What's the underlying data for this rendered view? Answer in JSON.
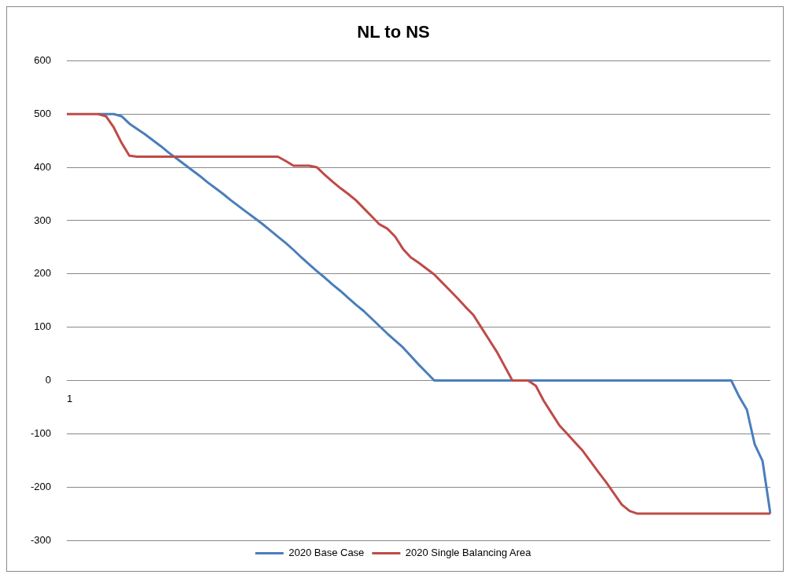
{
  "chart_data": {
    "type": "line",
    "title": "NL to NS",
    "categories": [
      "1",
      null,
      null,
      null,
      null,
      null,
      null,
      null,
      null,
      null,
      null,
      null,
      null,
      null,
      null,
      null,
      null,
      null,
      null,
      null,
      null,
      null,
      null,
      null,
      null,
      null,
      null,
      null,
      null,
      null,
      null,
      null,
      null,
      null,
      null,
      null,
      null,
      null,
      null,
      null,
      null,
      null,
      null,
      null,
      null,
      null,
      null,
      null,
      null,
      null,
      null,
      null,
      null,
      null,
      null,
      null,
      null,
      null,
      null,
      null,
      null,
      null,
      null,
      null,
      null,
      null,
      null,
      null,
      null,
      null,
      null,
      null,
      null,
      null,
      null,
      null,
      null,
      null,
      null,
      null,
      null,
      null,
      null,
      null,
      null,
      null,
      null,
      null,
      null,
      null,
      null
    ],
    "series": [
      {
        "name": "2020 Base Case",
        "color": "#4a7ebb",
        "values": [
          null,
          null,
          null,
          null,
          500,
          500,
          500,
          496,
          482,
          472,
          462,
          451,
          440,
          428,
          417,
          406,
          395,
          384,
          372,
          361,
          350,
          338,
          327,
          316,
          305,
          294,
          282,
          270,
          258,
          245,
          231,
          218,
          205,
          193,
          180,
          168,
          155,
          142,
          130,
          116,
          102,
          88,
          75,
          62,
          46,
          30,
          15,
          0,
          0,
          0,
          0,
          0,
          0,
          0,
          0,
          0,
          0,
          0,
          0,
          0,
          0,
          0,
          0,
          0,
          0,
          0,
          0,
          0,
          0,
          0,
          0,
          0,
          0,
          0,
          0,
          0,
          0,
          0,
          0,
          0,
          0,
          0,
          0,
          0,
          0,
          0,
          -30,
          -55,
          -120,
          -151,
          -250
        ]
      },
      {
        "name": "2020 Single Balancing Area",
        "color": "#be4b48",
        "values": [
          500,
          500,
          500,
          500,
          500,
          496,
          475,
          446,
          422,
          420,
          420,
          420,
          420,
          420,
          420,
          420,
          420,
          420,
          420,
          420,
          420,
          420,
          420,
          420,
          420,
          420,
          420,
          420,
          412,
          403,
          403,
          403,
          400,
          386,
          373,
          361,
          350,
          338,
          323,
          308,
          293,
          285,
          270,
          247,
          231,
          221,
          210,
          199,
          184,
          169,
          154,
          138,
          123,
          100,
          77,
          54,
          27,
          0,
          0,
          0,
          -10,
          -38,
          -61,
          -84,
          -100,
          -116,
          -132,
          -152,
          -172,
          -191,
          -212,
          -233,
          -245,
          -250,
          -250,
          -250,
          -250,
          -250,
          -250,
          -250,
          -250,
          -250,
          -250,
          -250,
          -250,
          -250,
          -250,
          -250,
          -250,
          -250,
          -250
        ]
      }
    ],
    "ylim": [
      -300,
      600
    ],
    "yticks": [
      -300,
      -200,
      -100,
      0,
      100,
      200,
      300,
      400,
      500,
      600
    ],
    "grid": "y",
    "legend": "bottom",
    "marker": "none",
    "line_style": "solid"
  }
}
